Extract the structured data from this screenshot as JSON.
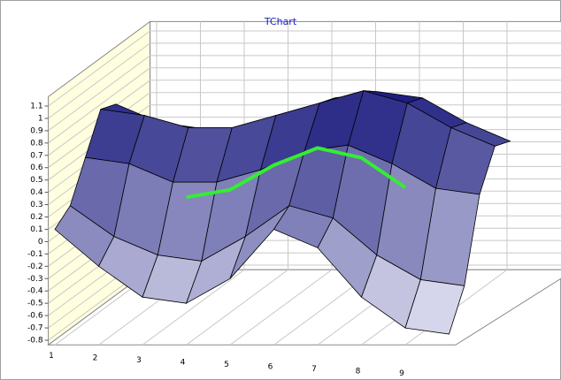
{
  "chart_data": {
    "type": "surface",
    "title": "TChart",
    "xlim": [
      1,
      10
    ],
    "xticks": [
      1,
      2,
      3,
      4,
      5,
      6,
      7,
      8,
      9
    ],
    "ylim": [
      -0.8,
      1.1
    ],
    "yticks": [
      -0.8,
      -0.7,
      -0.6,
      -0.5,
      -0.4,
      -0.3,
      -0.2,
      -0.1,
      0,
      0.1,
      0.2,
      0.3,
      0.4,
      0.5,
      0.6,
      0.7,
      0.8,
      0.9,
      1,
      1.1
    ],
    "grid": true,
    "surface": {
      "colors": [
        "#f2f2fc",
        "#00006e"
      ],
      "x": [
        1,
        2,
        3,
        4,
        5,
        6,
        7,
        8,
        9,
        10
      ],
      "rows": [
        [
          0.1,
          -0.2,
          -0.45,
          -0.5,
          -0.3,
          0.1,
          -0.05,
          -0.45,
          -0.7,
          -0.75
        ],
        [
          0.2,
          -0.05,
          -0.2,
          -0.25,
          -0.05,
          0.2,
          0.1,
          -0.2,
          -0.4,
          -0.45
        ],
        [
          0.5,
          0.45,
          0.3,
          0.3,
          0.4,
          0.55,
          0.6,
          0.45,
          0.25,
          0.2
        ],
        [
          0.8,
          0.75,
          0.65,
          0.65,
          0.75,
          0.85,
          0.95,
          0.85,
          0.65,
          0.5
        ],
        [
          0.75,
          0.6,
          0.55,
          0.55,
          0.65,
          0.8,
          0.85,
          0.8,
          0.6,
          0.45
        ]
      ]
    },
    "line": {
      "color": "#33ee33",
      "x": [
        4,
        5,
        6,
        7,
        8,
        9
      ],
      "values": [
        0.36,
        0.42,
        0.62,
        0.76,
        0.68,
        0.44
      ]
    }
  }
}
